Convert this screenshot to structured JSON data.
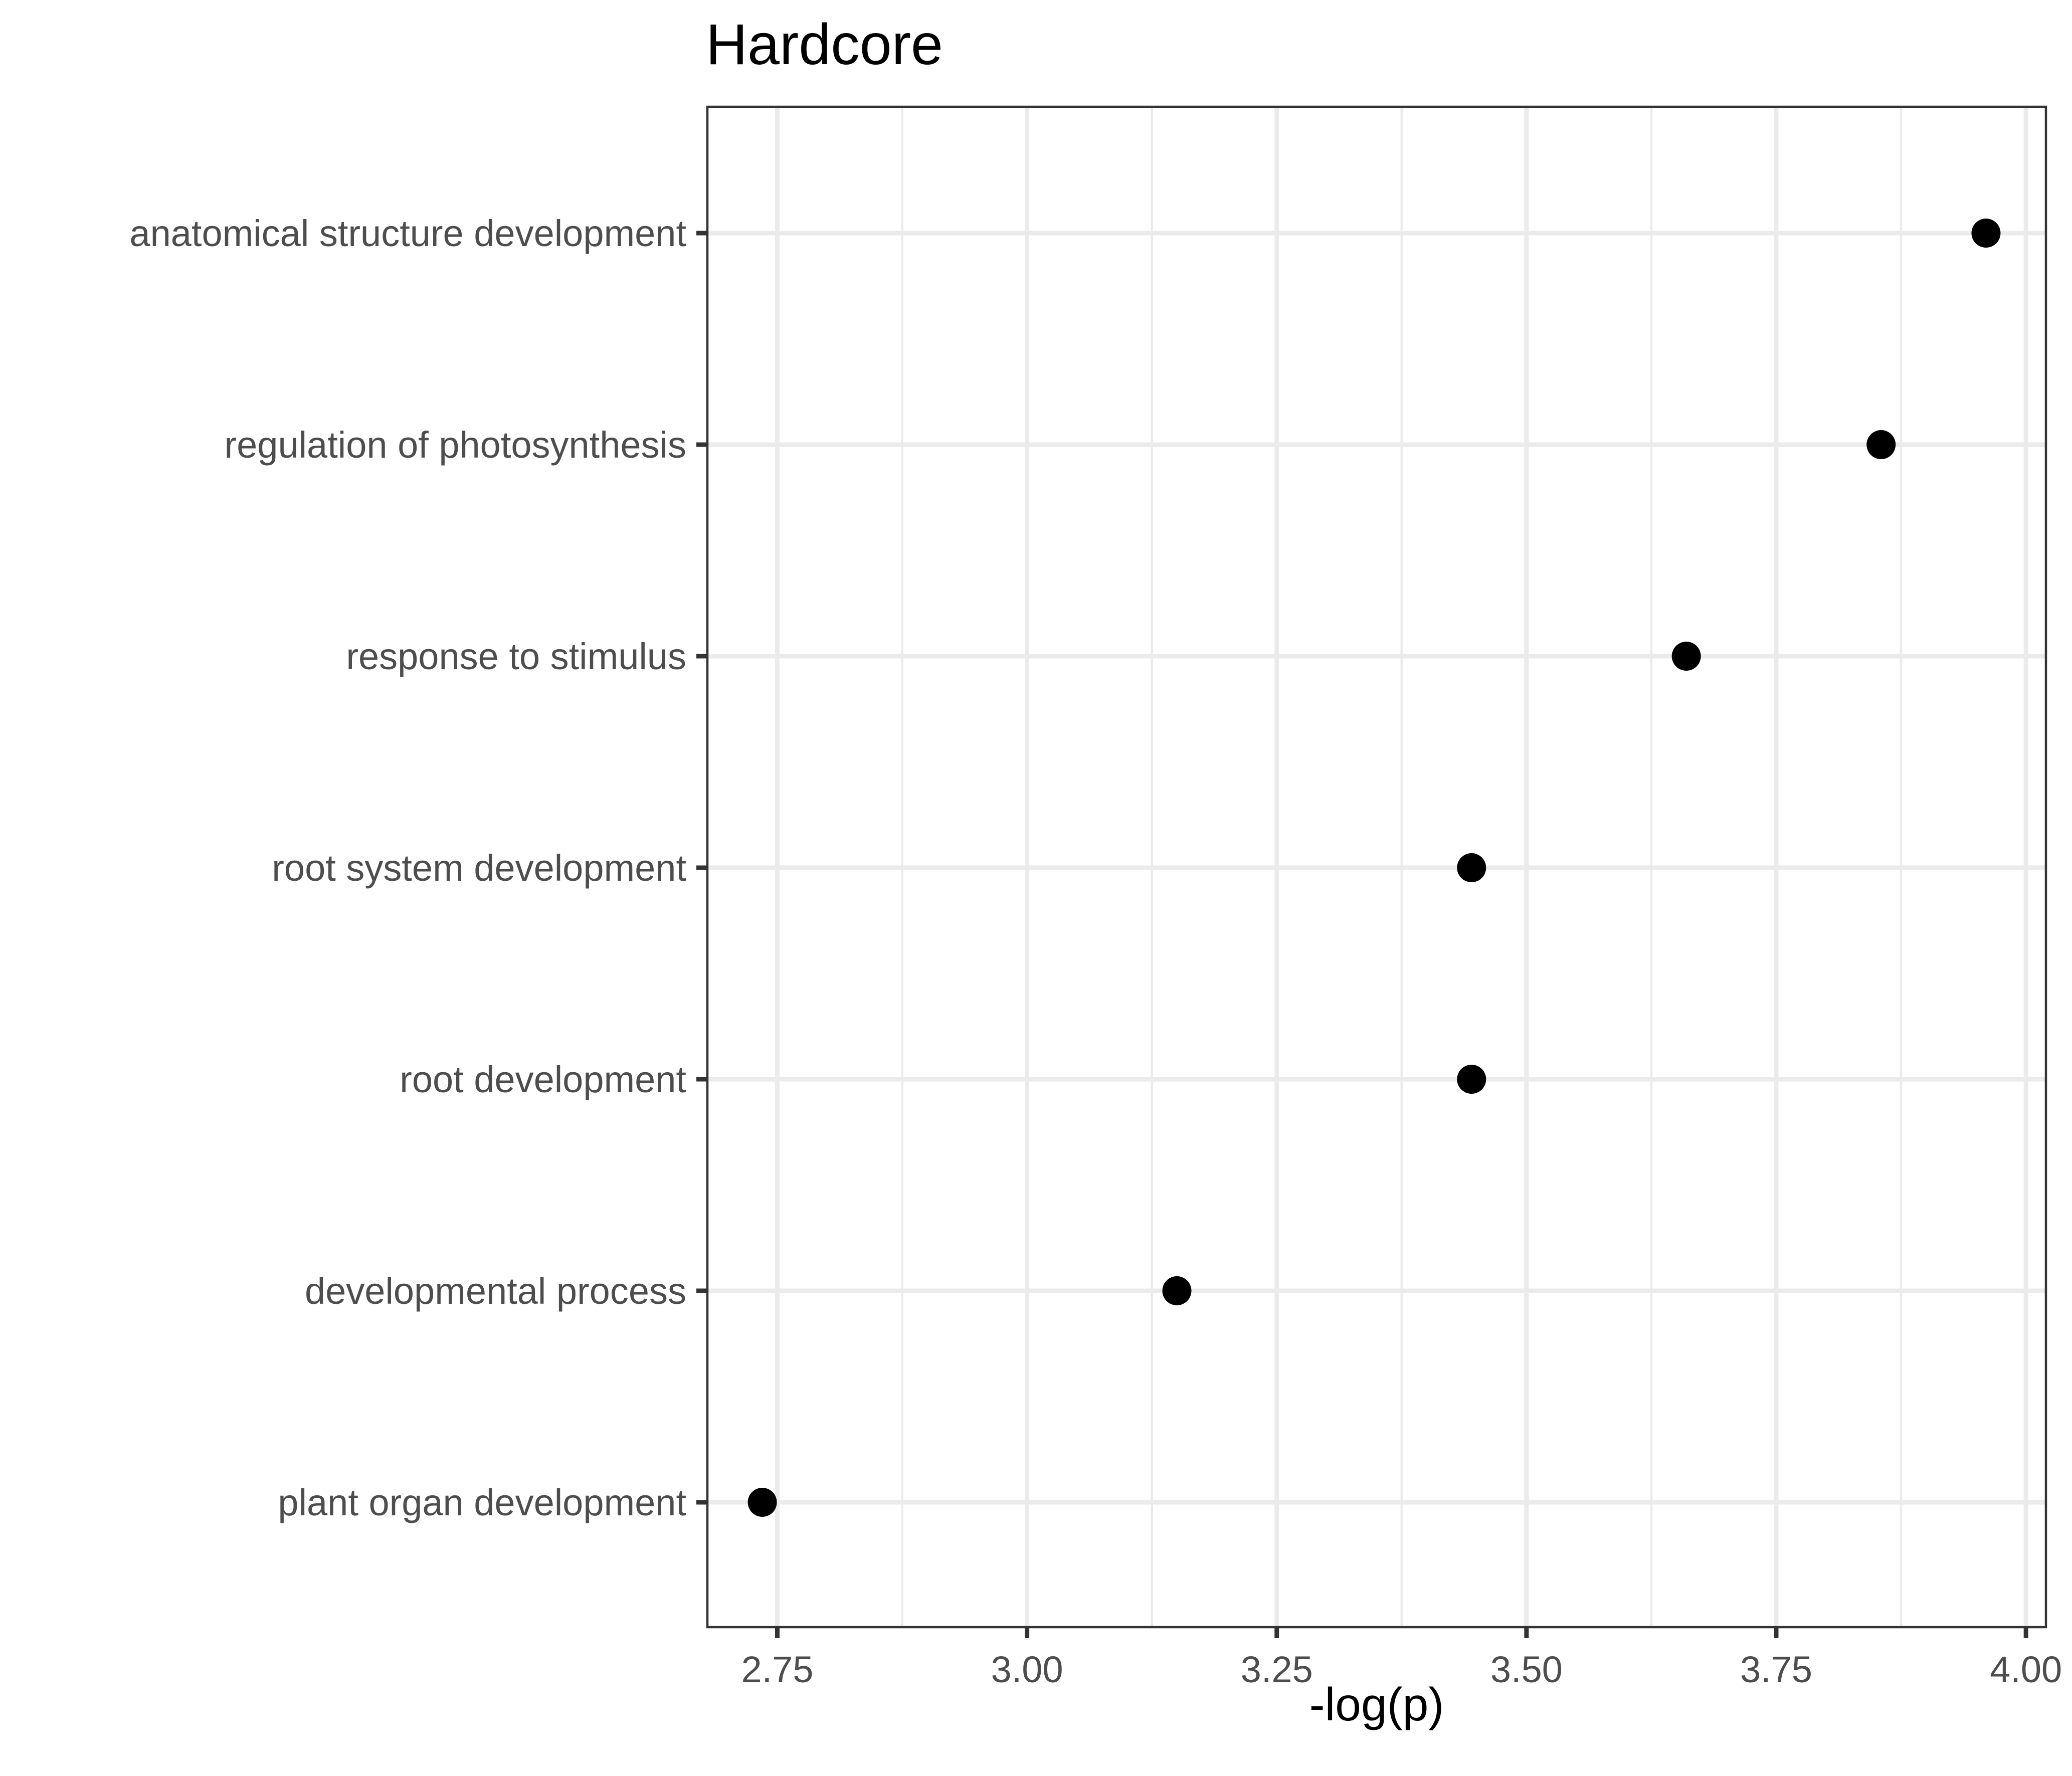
{
  "chart_data": {
    "type": "scatter",
    "title": "Hardcore",
    "xlabel": "-log(p)",
    "ylabel": "",
    "xlim": [
      2.68,
      4.02
    ],
    "x_ticks": [
      "2.75",
      "3.00",
      "3.25",
      "3.50",
      "3.75",
      "4.00"
    ],
    "x_tick_values": [
      2.75,
      3.0,
      3.25,
      3.5,
      3.75,
      4.0
    ],
    "x_minor_values": [
      2.875,
      3.125,
      3.375,
      3.625,
      3.875
    ],
    "grid": true,
    "legend": "none",
    "point_color": "#000000",
    "categories": [
      "anatomical structure development",
      "regulation of photosynthesis",
      "response to stimulus",
      "root system development",
      "root development",
      "developmental process",
      "plant organ development"
    ],
    "values": [
      3.96,
      3.855,
      3.66,
      3.445,
      3.445,
      3.15,
      2.735
    ]
  }
}
